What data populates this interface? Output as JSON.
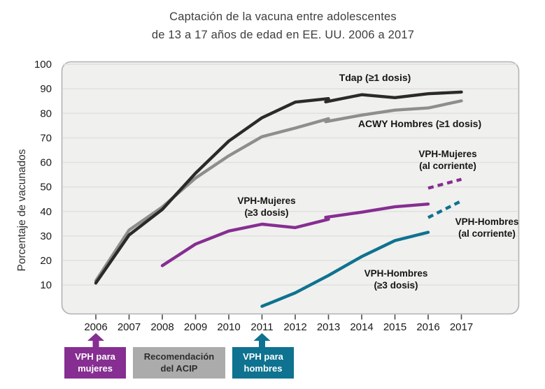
{
  "title": {
    "line1": "Captación de la vacuna entre adolescentes",
    "line2": "de 13 a 17 años de edad en EE. UU. 2006 a 2017"
  },
  "colors": {
    "purple": "#862e91",
    "teal": "#0e7290",
    "black_line": "#2b2a29",
    "gray_line": "#8e8e8e",
    "gray_box": "#ababab",
    "plot_bg": "#f0f0ee",
    "gridline": "#e1e1df",
    "plot_border": "#b2b2b2",
    "tick": "#4a4a4a",
    "axis_text": "#1a1a1a"
  },
  "chart_data": {
    "type": "line",
    "title": "Captación de la vacuna entre adolescentes de 13 a 17 años de edad en EE. UU. 2006 a 2017",
    "xlabel": "",
    "ylabel": "Porcentaje de vacunados",
    "x_ticks": [
      2006,
      2007,
      2008,
      2009,
      2010,
      2011,
      2012,
      2013,
      2014,
      2015,
      2016,
      2017
    ],
    "y_ticks": [
      10,
      20,
      30,
      40,
      50,
      60,
      70,
      80,
      90,
      100
    ],
    "ylim": [
      0,
      100
    ],
    "grid": true,
    "legend": "inline-labels",
    "series": [
      {
        "name": "Tdap (≥1 dosis)",
        "label_lines": [
          "Tdap (≥1 dosis)"
        ],
        "color": "#2b2a29",
        "dash": false,
        "segments": [
          {
            "x": [
              2006,
              2007,
              2008,
              2009,
              2010,
              2011,
              2012,
              2013
            ],
            "y": [
              10.8,
              30.4,
              40.8,
              55.6,
              68.7,
              78.2,
              84.6,
              86.0
            ]
          },
          {
            "x": [
              2013,
              2014,
              2015,
              2016,
              2017
            ],
            "y": [
              84.7,
              87.6,
              86.4,
              88.0,
              88.7
            ]
          }
        ]
      },
      {
        "name": "ACWY Hombres (≥1 dosis)",
        "label_lines": [
          "ACWY Hombres (≥1 dosis)"
        ],
        "color": "#8e8e8e",
        "dash": false,
        "segments": [
          {
            "x": [
              2006,
              2007,
              2008,
              2009,
              2010,
              2011,
              2012,
              2013
            ],
            "y": [
              11.7,
              32.4,
              41.8,
              53.6,
              62.7,
              70.5,
              74.0,
              77.8
            ]
          },
          {
            "x": [
              2013,
              2014,
              2015,
              2016,
              2017
            ],
            "y": [
              76.6,
              79.3,
              81.3,
              82.2,
              85.1
            ]
          }
        ]
      },
      {
        "name": "VPH-Mujeres (≥3 dosis)",
        "label_lines": [
          "VPH-Mujeres",
          "(≥3 dosis)"
        ],
        "color": "#862e91",
        "dash": false,
        "segments": [
          {
            "x": [
              2008,
              2009,
              2010,
              2011,
              2012,
              2013
            ],
            "y": [
              17.9,
              26.7,
              32.0,
              34.8,
              33.4,
              36.8
            ]
          },
          {
            "x": [
              2013,
              2014,
              2015,
              2016
            ],
            "y": [
              37.6,
              39.7,
              41.9,
              43.0
            ]
          }
        ]
      },
      {
        "name": "VPH-Hombres (≥3 dosis)",
        "label_lines": [
          "VPH-Hombres",
          "(≥3 dosis)"
        ],
        "color": "#0e7290",
        "dash": false,
        "segments": [
          {
            "x": [
              2011,
              2012,
              2013,
              2014,
              2015,
              2016
            ],
            "y": [
              1.3,
              6.8,
              13.9,
              21.6,
              28.1,
              31.5
            ]
          }
        ]
      },
      {
        "name": "VPH-Mujeres (al corriente)",
        "label_lines": [
          "VPH-Mujeres",
          "(al corriente)"
        ],
        "color": "#862e91",
        "dash": true,
        "segments": [
          {
            "x": [
              2016,
              2017
            ],
            "y": [
              49.5,
              53.1
            ]
          }
        ]
      },
      {
        "name": "VPH-Hombres (al corriente)",
        "label_lines": [
          "VPH-Hombres",
          "(al corriente)"
        ],
        "color": "#0e7290",
        "dash": true,
        "segments": [
          {
            "x": [
              2016,
              2017
            ],
            "y": [
              37.5,
              44.3
            ]
          }
        ]
      }
    ]
  },
  "timeline": {
    "events": [
      {
        "lines": [
          "VPH para",
          "mujeres"
        ],
        "arrow_year": 2006,
        "bg": "#862e91",
        "fg": "#ffffff"
      },
      {
        "lines": [
          "Recomendación",
          "del ACIP"
        ],
        "arrow_year": null,
        "bg": "#ababab",
        "fg": "#2d2d2d"
      },
      {
        "lines": [
          "VPH para",
          "hombres"
        ],
        "arrow_year": 2011,
        "bg": "#0e7290",
        "fg": "#ffffff"
      }
    ]
  }
}
